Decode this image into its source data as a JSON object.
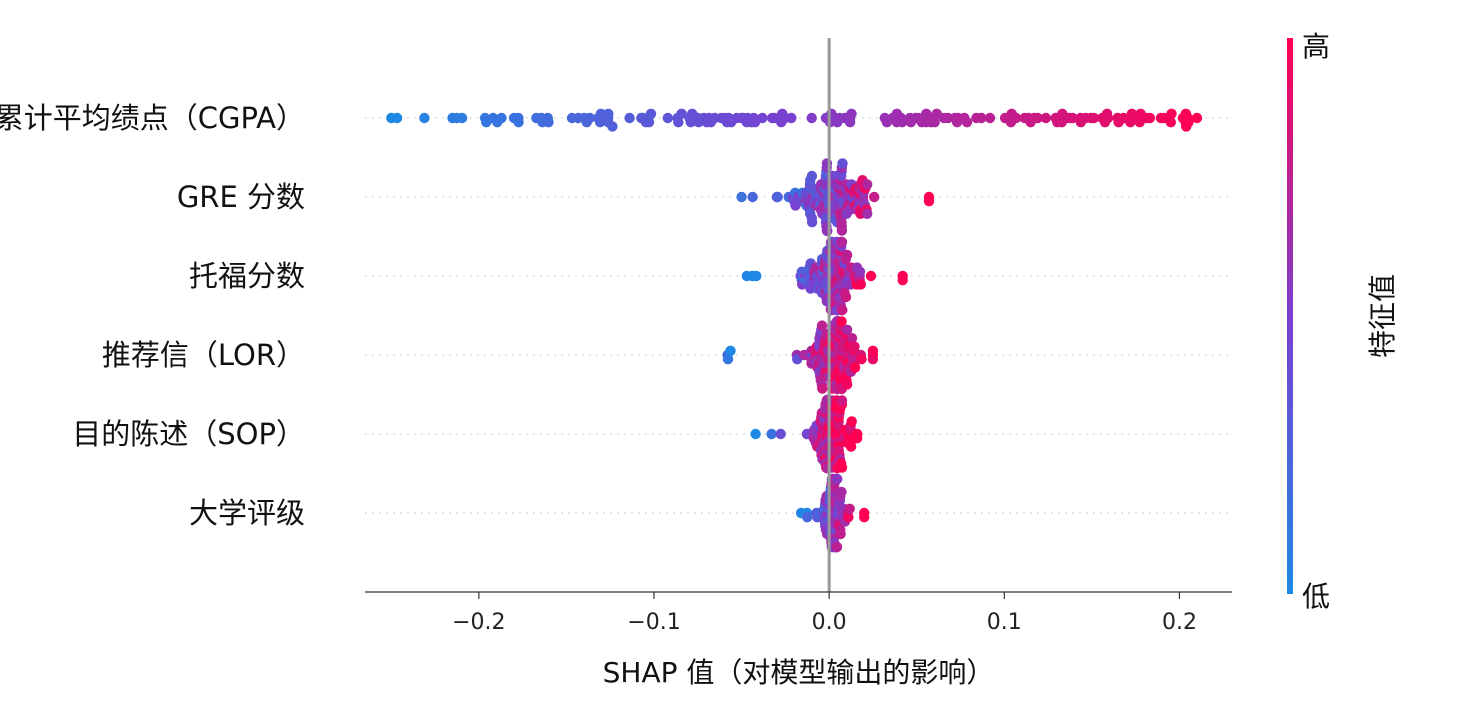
{
  "chart_data": {
    "type": "scatter",
    "subtype": "shap-beeswarm",
    "title": "",
    "xlabel": "SHAP 值（对模型输出的影响）",
    "ylabel": "",
    "xlim": [
      -0.265,
      0.23
    ],
    "xticks": [
      {
        "value": -0.2,
        "label": "−0.2"
      },
      {
        "value": -0.1,
        "label": "−0.1"
      },
      {
        "value": 0.0,
        "label": "0.0"
      },
      {
        "value": 0.1,
        "label": "0.1"
      },
      {
        "value": 0.2,
        "label": "0.2"
      }
    ],
    "grid": false,
    "zero_line": true,
    "colorbar": {
      "title": "特征值",
      "high_label": "高",
      "low_label": "低",
      "high_color": "#ff0052",
      "low_color": "#1e88e5"
    },
    "features": [
      {
        "name": "累计平均绩点（CGPA）",
        "min": -0.25,
        "max": 0.21,
        "points": 170
      },
      {
        "name": "GRE 分数",
        "min": -0.05,
        "max": 0.057,
        "points": 140
      },
      {
        "name": "托福分数",
        "min": -0.047,
        "max": 0.042,
        "points": 140
      },
      {
        "name": "推荐信（LOR）",
        "min": -0.058,
        "max": 0.025,
        "points": 130
      },
      {
        "name": "目的陈述（SOP）",
        "min": -0.042,
        "max": 0.016,
        "points": 110
      },
      {
        "name": "大学评级",
        "min": -0.016,
        "max": 0.02,
        "points": 90
      }
    ]
  }
}
